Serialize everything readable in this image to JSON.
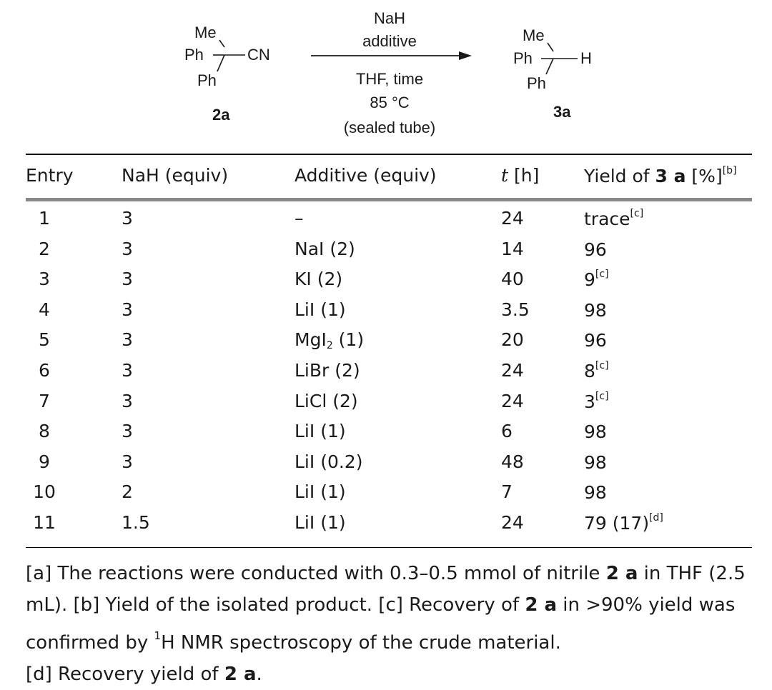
{
  "scheme": {
    "reactant": {
      "me": "Me",
      "ph1": "Ph",
      "cn": "CN",
      "ph2": "Ph",
      "label": "2a"
    },
    "product": {
      "me": "Me",
      "ph1": "Ph",
      "h": "H",
      "ph2": "Ph",
      "label": "3a"
    },
    "conditions_above": [
      "NaH",
      "additive"
    ],
    "conditions_below": [
      "THF, time",
      "85 °C",
      "(sealed tube)"
    ]
  },
  "table": {
    "headers": {
      "entry": "Entry",
      "nah": "NaH (equiv)",
      "additive": "Additive (equiv)",
      "t_symbol": "t",
      "t_unit": " [h]",
      "yield_prefix": "Yield of ",
      "yield_compound": "3 a",
      "yield_unit": " [%]",
      "yield_note": "[b]"
    },
    "rows": [
      {
        "entry": "1",
        "nah": "3",
        "add": "–",
        "add_sub": "",
        "add_tail": "",
        "t": "24",
        "yield": "trace",
        "note": "[c]"
      },
      {
        "entry": "2",
        "nah": "3",
        "add": "NaI (2)",
        "add_sub": "",
        "add_tail": "",
        "t": "14",
        "yield": "96",
        "note": ""
      },
      {
        "entry": "3",
        "nah": "3",
        "add": "KI (2)",
        "add_sub": "",
        "add_tail": "",
        "t": "40",
        "yield": "9",
        "note": "[c]"
      },
      {
        "entry": "4",
        "nah": "3",
        "add": "LiI (1)",
        "add_sub": "",
        "add_tail": "",
        "t": "3.5",
        "yield": "98",
        "note": ""
      },
      {
        "entry": "5",
        "nah": "3",
        "add": "MgI",
        "add_sub": "2",
        "add_tail": " (1)",
        "t": "20",
        "yield": "96",
        "note": ""
      },
      {
        "entry": "6",
        "nah": "3",
        "add": "LiBr (2)",
        "add_sub": "",
        "add_tail": "",
        "t": "24",
        "yield": "8",
        "note": "[c]"
      },
      {
        "entry": "7",
        "nah": "3",
        "add": "LiCl (2)",
        "add_sub": "",
        "add_tail": "",
        "t": "24",
        "yield": "3",
        "note": "[c]"
      },
      {
        "entry": "8",
        "nah": "3",
        "add": "LiI (1)",
        "add_sub": "",
        "add_tail": "",
        "t": "6",
        "yield": "98",
        "note": ""
      },
      {
        "entry": "9",
        "nah": "3",
        "add": "LiI (0.2)",
        "add_sub": "",
        "add_tail": "",
        "t": "48",
        "yield": "98",
        "note": ""
      },
      {
        "entry": "10",
        "nah": "2",
        "add": "LiI (1)",
        "add_sub": "",
        "add_tail": "",
        "t": "7",
        "yield": "98",
        "note": ""
      },
      {
        "entry": "11",
        "nah": "1.5",
        "add": "LiI (1)",
        "add_sub": "",
        "add_tail": "",
        "t": "24",
        "yield": "79 (17)",
        "note": "[d]"
      }
    ]
  },
  "footnote": {
    "a_text": "[a] The reactions were conducted with 0.3–0.5 mmol of nitrile ",
    "a_cmpd": "2 a",
    "a_tail": " in THF (2.5 mL).",
    "b_text": " [b] Yield of the isolated product.",
    "c_text": " [c] Recovery of ",
    "c_cmpd": "2 a",
    "c_mid": " in >90% yield was confirmed by ",
    "c_sup": "1",
    "c_tail": "H NMR spectroscopy of the crude material.",
    "d_text": "[d] Recovery yield of ",
    "d_cmpd": "2 a",
    "d_tail": "."
  }
}
